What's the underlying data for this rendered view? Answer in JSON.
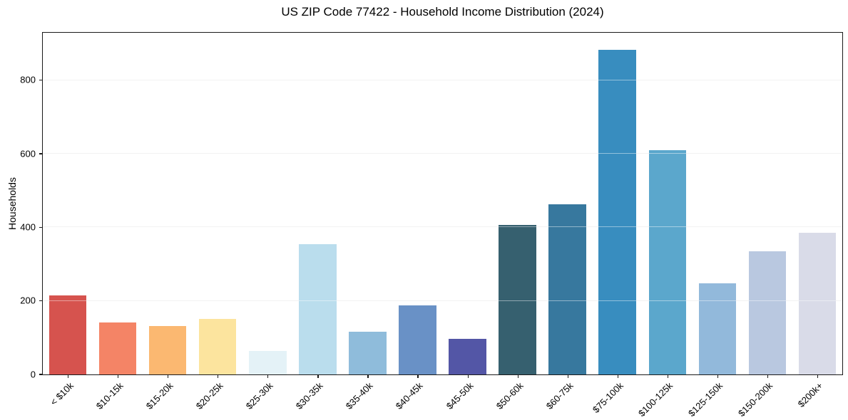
{
  "chart_data": {
    "type": "bar",
    "title": "US ZIP Code 77422 - Household Income Distribution (2024)",
    "xlabel": "",
    "ylabel": "Households",
    "categories": [
      "< $10k",
      "$10-15k",
      "$15-20k",
      "$20-25k",
      "$25-30k",
      "$30-35k",
      "$35-40k",
      "$40-45k",
      "$45-50k",
      "$50-60k",
      "$60-75k",
      "$75-100k",
      "$100-125k",
      "$125-150k",
      "$150-200k",
      "$200k+"
    ],
    "values": [
      214,
      142,
      131,
      151,
      64,
      355,
      116,
      187,
      96,
      407,
      462,
      882,
      609,
      247,
      334,
      386
    ],
    "bar_colors": [
      "#d6534e",
      "#f48466",
      "#fbb871",
      "#fce49e",
      "#e4f2f7",
      "#badded",
      "#8fbcdb",
      "#6991c6",
      "#5356a6",
      "#36606f",
      "#37789e",
      "#388dbf",
      "#5ba7cc",
      "#92b9db",
      "#b9c8e0",
      "#d9dbe8"
    ],
    "y_ticks": [
      0,
      200,
      400,
      600,
      800
    ],
    "ylim": [
      0,
      929
    ],
    "grid": "horizontal",
    "grid_color": "#e8e8e8",
    "axis_color": "#1a1a1a",
    "background_color": "#ffffff",
    "legend": "none",
    "bar_width_fraction": 0.75
  }
}
